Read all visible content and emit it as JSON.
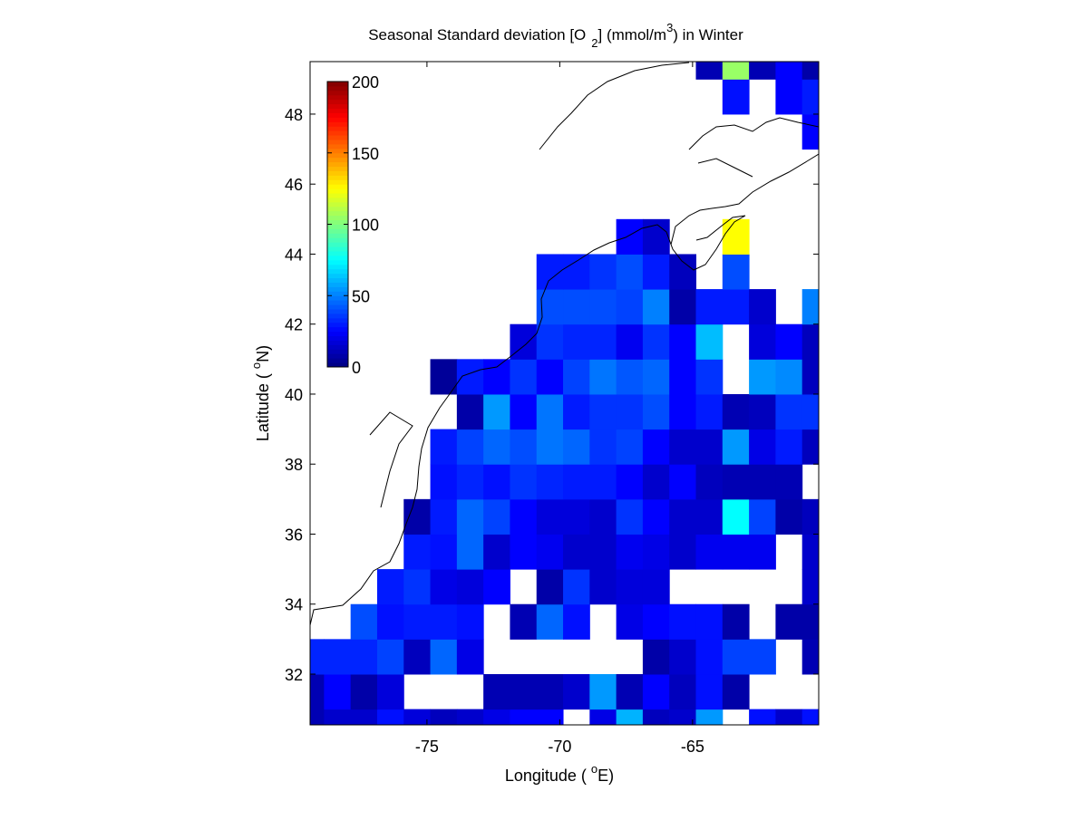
{
  "chart_data": {
    "type": "heatmap",
    "title": {
      "prefix": "Seasonal Standard deviation [O",
      "sub": "2",
      "mid": "] (mmol/m",
      "sup": "3",
      "suffix": ") in  Winter"
    },
    "x_label": {
      "prefix": "Longitude ( ",
      "sup": "o",
      "suffix": "E)"
    },
    "y_label": {
      "prefix": "Latitude ( ",
      "sup": "o",
      "suffix": "N)"
    },
    "colormap": "jet",
    "clim": [
      0,
      200
    ],
    "colorbar_ticks": [
      0,
      50,
      100,
      150,
      200
    ],
    "xlim": [
      -79.4,
      -60.25
    ],
    "ylim": [
      30.55,
      49.5
    ],
    "xticks": [
      -75,
      -70,
      -65
    ],
    "yticks": [
      32,
      34,
      36,
      38,
      40,
      42,
      44,
      46,
      48
    ],
    "cell_size": 1,
    "x": [
      -79.375,
      -78.375,
      -77.375,
      -76.375,
      -75.375,
      -74.375,
      -73.375,
      -72.375,
      -71.375,
      -70.375,
      -69.375,
      -68.375,
      -67.375,
      -66.375,
      -65.375,
      -64.375,
      -63.375,
      -62.375,
      -61.375,
      -60.375
    ],
    "y": [
      30.5,
      31.5,
      32.5,
      33.5,
      34.5,
      35.5,
      36.5,
      37.5,
      38.5,
      39.5,
      40.5,
      41.5,
      42.5,
      43.5,
      44.5,
      45.5,
      46.5,
      47.5,
      48.5,
      49.5
    ],
    "z": [
      [
        10,
        15,
        15,
        28,
        18,
        12,
        15,
        20,
        25,
        25,
        null,
        20,
        60,
        12,
        15,
        55,
        null,
        28,
        15,
        28
      ],
      [
        10,
        25,
        8,
        18,
        null,
        null,
        null,
        10,
        10,
        10,
        15,
        55,
        10,
        25,
        12,
        28,
        8,
        null,
        null,
        null
      ],
      [
        32,
        32,
        32,
        38,
        12,
        45,
        20,
        null,
        null,
        null,
        null,
        null,
        null,
        8,
        15,
        28,
        38,
        38,
        null,
        10
      ],
      [
        null,
        null,
        40,
        28,
        30,
        30,
        28,
        null,
        10,
        45,
        28,
        null,
        20,
        25,
        28,
        28,
        8,
        null,
        8,
        8
      ],
      [
        null,
        null,
        null,
        30,
        35,
        20,
        18,
        25,
        null,
        8,
        35,
        15,
        18,
        18,
        null,
        null,
        null,
        null,
        null,
        15
      ],
      [
        null,
        null,
        null,
        null,
        30,
        28,
        45,
        15,
        25,
        22,
        15,
        15,
        22,
        20,
        15,
        22,
        22,
        22,
        null,
        15
      ],
      [
        null,
        null,
        null,
        null,
        8,
        30,
        45,
        38,
        25,
        18,
        18,
        15,
        35,
        25,
        15,
        15,
        75,
        38,
        8,
        12
      ],
      [
        null,
        null,
        null,
        null,
        null,
        28,
        32,
        28,
        35,
        32,
        30,
        30,
        25,
        15,
        25,
        12,
        10,
        10,
        10,
        null
      ],
      [
        null,
        null,
        null,
        null,
        null,
        30,
        38,
        45,
        40,
        48,
        45,
        35,
        38,
        25,
        15,
        15,
        55,
        20,
        30,
        12
      ],
      [
        null,
        null,
        null,
        null,
        null,
        null,
        8,
        55,
        25,
        48,
        30,
        35,
        35,
        40,
        25,
        30,
        10,
        12,
        35,
        35
      ],
      [
        null,
        null,
        null,
        null,
        null,
        5,
        30,
        25,
        35,
        25,
        38,
        48,
        42,
        45,
        25,
        35,
        null,
        55,
        52,
        12
      ],
      [
        null,
        null,
        null,
        null,
        null,
        null,
        null,
        null,
        18,
        35,
        32,
        32,
        22,
        35,
        25,
        62,
        null,
        18,
        25,
        12
      ],
      [
        null,
        null,
        null,
        null,
        null,
        null,
        null,
        null,
        null,
        40,
        40,
        40,
        38,
        50,
        8,
        30,
        30,
        15,
        null,
        50
      ],
      [
        null,
        null,
        null,
        null,
        null,
        null,
        null,
        null,
        null,
        30,
        30,
        35,
        40,
        30,
        12,
        null,
        40,
        null,
        null,
        null
      ],
      [
        null,
        null,
        null,
        null,
        null,
        null,
        null,
        null,
        null,
        null,
        null,
        null,
        25,
        15,
        null,
        null,
        125,
        null,
        null,
        null
      ],
      [
        null,
        null,
        null,
        null,
        null,
        null,
        null,
        null,
        null,
        null,
        null,
        null,
        null,
        null,
        null,
        null,
        null,
        null,
        null,
        null
      ],
      [
        null,
        null,
        null,
        null,
        null,
        null,
        null,
        null,
        null,
        null,
        null,
        null,
        null,
        null,
        null,
        null,
        null,
        null,
        null,
        null
      ],
      [
        null,
        null,
        null,
        null,
        null,
        null,
        null,
        null,
        null,
        null,
        null,
        null,
        null,
        null,
        null,
        null,
        null,
        null,
        null,
        25
      ],
      [
        null,
        null,
        null,
        null,
        null,
        null,
        null,
        null,
        null,
        null,
        null,
        null,
        null,
        null,
        null,
        null,
        28,
        null,
        25,
        30
      ],
      [
        null,
        null,
        null,
        null,
        null,
        null,
        null,
        null,
        null,
        null,
        null,
        null,
        null,
        null,
        null,
        10,
        105,
        10,
        25,
        8
      ]
    ]
  }
}
